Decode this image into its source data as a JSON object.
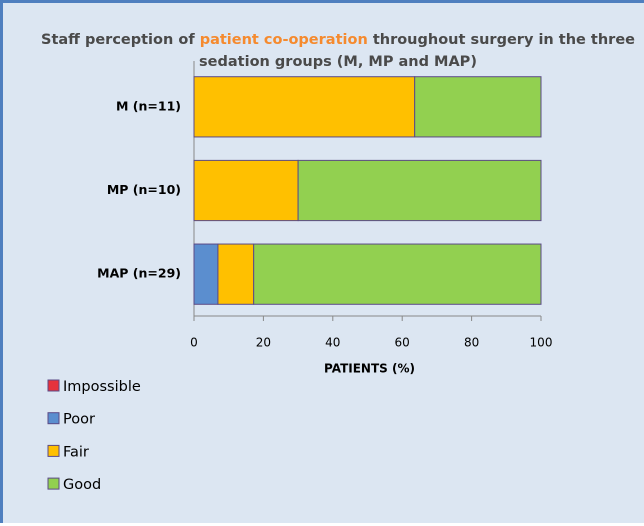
{
  "chart_data": {
    "type": "stacked_barh",
    "title": [
      {
        "text": "Staff perception of ",
        "color": "#4a4a4a"
      },
      {
        "text": "patient co-operation",
        "color": "#f58a2e"
      },
      {
        "text": " throughout surgery  in the three sedation groups (M, MP and  MAP)",
        "color": "#4a4a4a"
      }
    ],
    "x_label": "PATIENTS (%)",
    "categories": [
      "M (n=11)",
      "MP (n=10)",
      "MAP (n=29)"
    ],
    "series": [
      {
        "name": "Impossible",
        "color": "#e5323c",
        "values": [
          0,
          0,
          0
        ]
      },
      {
        "name": "Poor",
        "color": "#5b8ecf",
        "values": [
          0,
          0,
          6.9
        ]
      },
      {
        "name": "Fair",
        "color": "#ffc000",
        "values": [
          63.6,
          30,
          10.3
        ]
      },
      {
        "name": "Good",
        "color": "#92d050",
        "values": [
          36.4,
          70,
          82.8
        ]
      }
    ],
    "xlim": [
      0,
      100
    ],
    "xticks": [
      0,
      20,
      40,
      60,
      80,
      100
    ],
    "legend": "bottom-left"
  }
}
